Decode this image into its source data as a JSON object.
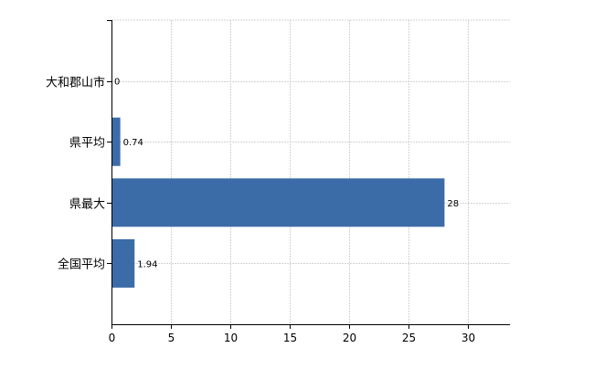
{
  "chart_data": {
    "type": "bar",
    "orientation": "horizontal",
    "categories": [
      "大和郡山市",
      "県平均",
      "県最大",
      "全国平均"
    ],
    "values": [
      0,
      0.74,
      28,
      1.94
    ],
    "data_labels": [
      "0",
      "0.74",
      "28",
      "1.94"
    ],
    "xlim": [
      0,
      33.5
    ],
    "x_ticks": [
      0,
      5,
      10,
      15,
      20,
      25,
      30
    ],
    "grid": true,
    "bar_color": "#3c6ca8",
    "grid_color": "#d3d3d3",
    "axis_color": "#000000",
    "title": "",
    "xlabel": "",
    "ylabel": ""
  }
}
